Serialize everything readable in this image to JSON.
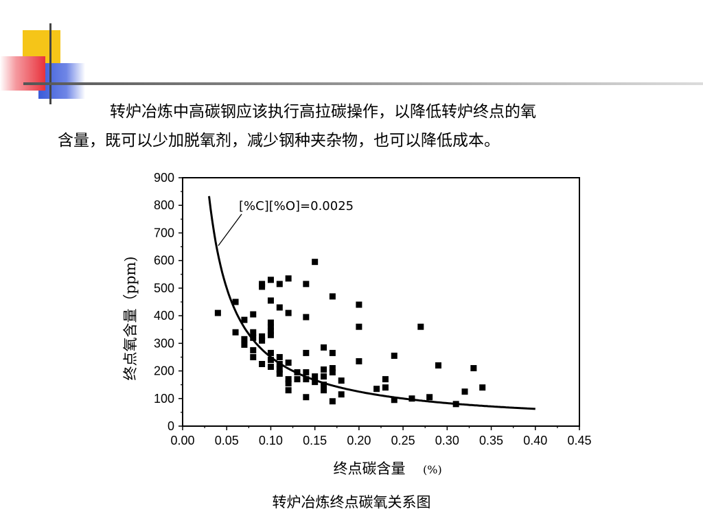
{
  "slide": {
    "paragraph_line1": "转炉冶炼中高碳钢应该执行高拉碳操作，以降低转炉终点的氧",
    "paragraph_line2": "含量，既可以少加脱氧剂，减少钢种夹杂物，也可以降低成本。",
    "caption": "转炉冶炼终点碳氧关系图",
    "colors": {
      "yellow": "#f5c518",
      "red": "#e8323c",
      "blue": "#3a5bd9",
      "line": "#777777"
    }
  },
  "chart_data": {
    "type": "scatter",
    "xlabel": "终点碳含量",
    "xlabel_unit": "(%)",
    "ylabel": "终点氧含量（ppm)",
    "xlim": [
      0.0,
      0.45
    ],
    "ylim": [
      0,
      900
    ],
    "xticks": [
      "0.00",
      "0.05",
      "0.10",
      "0.15",
      "0.20",
      "0.25",
      "0.30",
      "0.35",
      "0.40",
      "0.45"
    ],
    "yticks": [
      "0",
      "100",
      "200",
      "300",
      "400",
      "500",
      "600",
      "700",
      "800",
      "900"
    ],
    "grid": false,
    "annotation": "[%C][%O]=0.0025",
    "curve": {
      "equation_constant": 0.0025,
      "x_range": [
        0.03,
        0.4
      ]
    },
    "points": [
      [
        0.04,
        410
      ],
      [
        0.06,
        450
      ],
      [
        0.06,
        340
      ],
      [
        0.07,
        385
      ],
      [
        0.07,
        315
      ],
      [
        0.07,
        295
      ],
      [
        0.08,
        405
      ],
      [
        0.08,
        340
      ],
      [
        0.08,
        320
      ],
      [
        0.08,
        275
      ],
      [
        0.08,
        250
      ],
      [
        0.09,
        515
      ],
      [
        0.09,
        505
      ],
      [
        0.09,
        325
      ],
      [
        0.09,
        310
      ],
      [
        0.09,
        225
      ],
      [
        0.1,
        530
      ],
      [
        0.1,
        455
      ],
      [
        0.1,
        375
      ],
      [
        0.1,
        360
      ],
      [
        0.1,
        345
      ],
      [
        0.1,
        330
      ],
      [
        0.1,
        265
      ],
      [
        0.1,
        240
      ],
      [
        0.1,
        215
      ],
      [
        0.11,
        515
      ],
      [
        0.11,
        430
      ],
      [
        0.11,
        250
      ],
      [
        0.11,
        225
      ],
      [
        0.11,
        205
      ],
      [
        0.11,
        190
      ],
      [
        0.12,
        535
      ],
      [
        0.12,
        410
      ],
      [
        0.12,
        230
      ],
      [
        0.12,
        170
      ],
      [
        0.12,
        155
      ],
      [
        0.12,
        130
      ],
      [
        0.13,
        195
      ],
      [
        0.13,
        170
      ],
      [
        0.14,
        515
      ],
      [
        0.14,
        395
      ],
      [
        0.14,
        265
      ],
      [
        0.14,
        195
      ],
      [
        0.14,
        170
      ],
      [
        0.14,
        105
      ],
      [
        0.15,
        595
      ],
      [
        0.15,
        180
      ],
      [
        0.15,
        160
      ],
      [
        0.16,
        285
      ],
      [
        0.16,
        205
      ],
      [
        0.16,
        180
      ],
      [
        0.16,
        150
      ],
      [
        0.16,
        130
      ],
      [
        0.17,
        470
      ],
      [
        0.17,
        265
      ],
      [
        0.17,
        210
      ],
      [
        0.17,
        195
      ],
      [
        0.17,
        90
      ],
      [
        0.18,
        165
      ],
      [
        0.18,
        115
      ],
      [
        0.2,
        440
      ],
      [
        0.2,
        360
      ],
      [
        0.2,
        235
      ],
      [
        0.22,
        135
      ],
      [
        0.23,
        170
      ],
      [
        0.23,
        140
      ],
      [
        0.24,
        255
      ],
      [
        0.24,
        95
      ],
      [
        0.26,
        100
      ],
      [
        0.27,
        360
      ],
      [
        0.28,
        105
      ],
      [
        0.29,
        220
      ],
      [
        0.31,
        80
      ],
      [
        0.32,
        125
      ],
      [
        0.33,
        210
      ],
      [
        0.34,
        140
      ]
    ]
  }
}
